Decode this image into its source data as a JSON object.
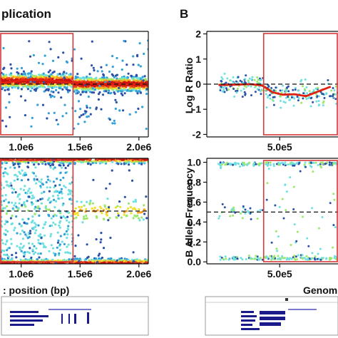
{
  "figure": {
    "panel_a_title": "plication",
    "panel_b_letter": "B"
  },
  "chart_data": [
    {
      "id": "A-top",
      "type": "scatter",
      "title": "",
      "xlabel": "",
      "ylabel": "",
      "xlim": [
        820000,
        2080000
      ],
      "ylim": [
        -2,
        2
      ],
      "x_ticks": [
        1000000,
        1500000,
        2000000
      ],
      "x_tick_labels": [
        "1.0e6",
        "1.5e6",
        "2.0e6"
      ],
      "reference_line": 0,
      "highlight_region": [
        820000,
        1440000
      ],
      "trend": {
        "x": [
          820000,
          900000,
          1000000,
          1100000,
          1200000,
          1300000,
          1440000,
          1600000,
          1800000,
          2080000
        ],
        "y": [
          0.03,
          0.08,
          0.14,
          0.16,
          0.15,
          0.12,
          0.05,
          0.02,
          0.0,
          0.0
        ]
      },
      "density_colors": [
        "#2c52a8",
        "#33a0d8",
        "#6fe0e0",
        "#9be86a",
        "#f0e030",
        "#f7a020",
        "#e8401a",
        "#c81010"
      ]
    },
    {
      "id": "A-bottom",
      "type": "scatter",
      "title": "",
      "xlabel": ": position (bp)",
      "ylabel": "",
      "xlim": [
        820000,
        2080000
      ],
      "ylim": [
        0,
        1
      ],
      "x_ticks": [
        1000000,
        1500000,
        2000000
      ],
      "x_tick_labels": [
        "1.0e6",
        "1.5e6",
        "2.0e6"
      ],
      "reference_line": 0.5,
      "highlight_region": [
        820000,
        1440000
      ]
    },
    {
      "id": "B-top",
      "type": "scatter",
      "title": "",
      "xlabel": "",
      "ylabel": "Log R Ratio",
      "xlim": [
        0,
        900000
      ],
      "ylim": [
        -2.1,
        2.1
      ],
      "x_ticks": [
        500000
      ],
      "x_tick_labels": [
        "5.0e5"
      ],
      "y_ticks": [
        -2,
        -1,
        0,
        1,
        2
      ],
      "y_tick_labels": [
        "-2",
        "-1",
        "0",
        "1",
        "2"
      ],
      "reference_line": 0,
      "highlight_region": [
        390000,
        900000
      ],
      "data_start": 80000,
      "trend": {
        "x": [
          80000,
          200000,
          300000,
          380000,
          450000,
          520000,
          600000,
          680000,
          760000,
          850000
        ],
        "y": [
          -0.03,
          -0.02,
          0.0,
          -0.05,
          -0.32,
          -0.42,
          -0.4,
          -0.48,
          -0.3,
          -0.1
        ]
      }
    },
    {
      "id": "B-bottom",
      "type": "scatter",
      "title": "",
      "xlabel": "Genom",
      "ylabel": "B Allele Frequency",
      "xlim": [
        0,
        900000
      ],
      "ylim": [
        -0.02,
        1.04
      ],
      "x_ticks": [
        500000
      ],
      "x_tick_labels": [
        "5.0e5"
      ],
      "y_ticks": [
        0,
        0.2,
        0.4,
        0.6,
        0.8,
        1.0
      ],
      "y_tick_labels": [
        "0.0",
        "0.2",
        "0.4",
        "0.6",
        "0.8",
        "1.0"
      ],
      "reference_line": 0.5,
      "highlight_region": [
        390000,
        900000
      ],
      "data_start": 80000
    }
  ]
}
